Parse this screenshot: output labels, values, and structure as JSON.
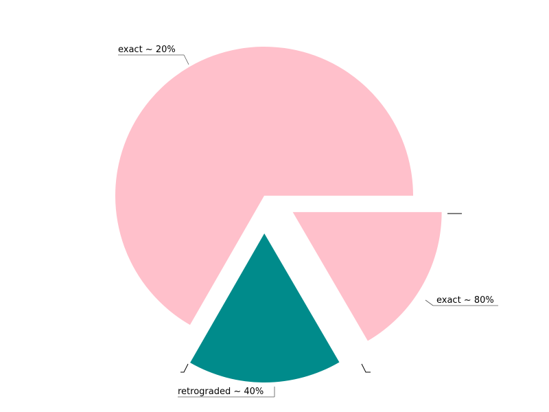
{
  "chart_data": {
    "type": "pie",
    "title": "",
    "legend": false,
    "slices": [
      {
        "label": "exact ~ 20%",
        "value": 66.7,
        "color": "#ffc0cb",
        "exploded": false
      },
      {
        "label": "retrograded ~ 40%",
        "value": 16.7,
        "color": "#008b8b",
        "exploded": true
      },
      {
        "label": "exact ~ 80%",
        "value": 16.6,
        "color": "#ffc0cb",
        "exploded": true
      }
    ]
  }
}
